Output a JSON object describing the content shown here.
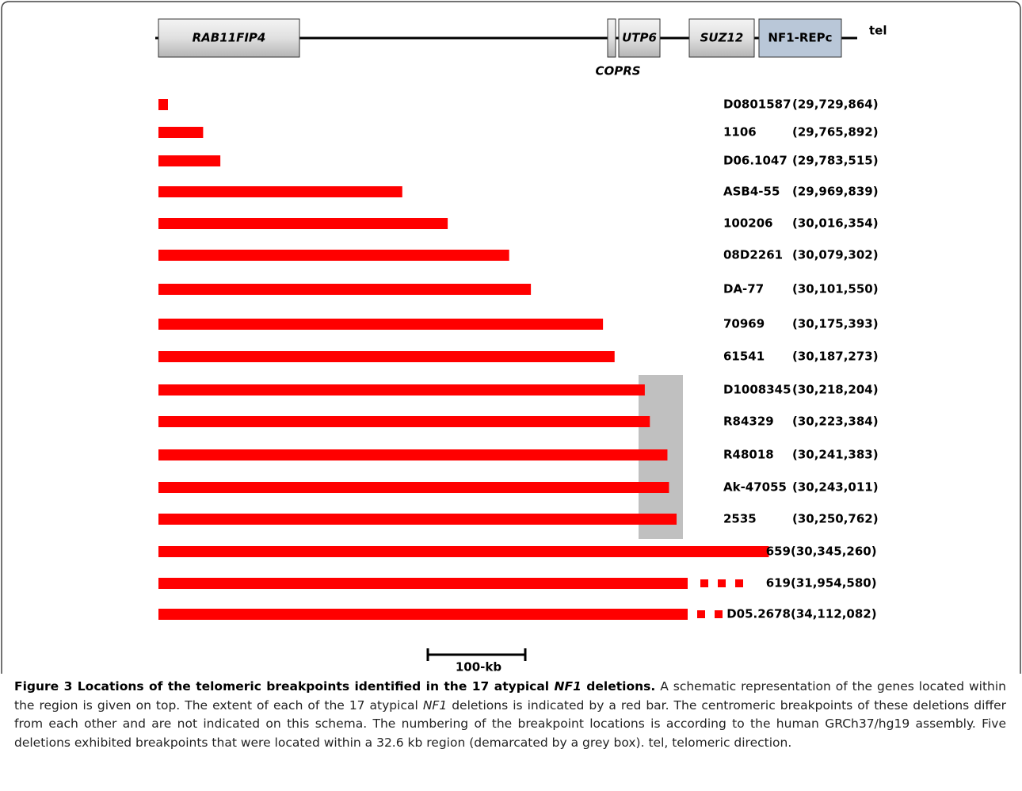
{
  "genes": [
    {
      "label": "RAB11FIP4"
    },
    {
      "label": "COPRS"
    },
    {
      "label": "UTP6"
    },
    {
      "label": "SUZ12"
    },
    {
      "label": "NF1-REPc"
    }
  ],
  "tel_label": "tel",
  "rows": [
    {
      "id": "D0801587",
      "position": 29729864,
      "label": "(29,729,864)"
    },
    {
      "id": "1106",
      "position": 29765892,
      "label": "(29,765,892)"
    },
    {
      "id": "D06.1047",
      "position": 29783515,
      "label": "(29,783,515)"
    },
    {
      "id": "ASB4-55",
      "position": 29969839,
      "label": "(29,969,839)"
    },
    {
      "id": "100206",
      "position": 30016354,
      "label": "(30,016,354)"
    },
    {
      "id": "08D2261",
      "position": 30079302,
      "label": "(30,079,302)"
    },
    {
      "id": "DA-77",
      "position": 30101550,
      "label": "(30,101,550)"
    },
    {
      "id": "70969",
      "position": 30175393,
      "label": "(30,175,393)"
    },
    {
      "id": "61541",
      "position": 30187273,
      "label": "(30,187,273)"
    },
    {
      "id": "D1008345",
      "position": 30218204,
      "label": "(30,218,204)"
    },
    {
      "id": "R84329",
      "position": 30223384,
      "label": "(30,223,384)"
    },
    {
      "id": "R48018",
      "position": 30241383,
      "label": "(30,241,383)"
    },
    {
      "id": "Ak-47055",
      "position": 30243011,
      "label": "(30,243,011)"
    },
    {
      "id": "2535",
      "position": 30250762,
      "label": "(30,250,762)"
    },
    {
      "id": "659",
      "position": 30345260,
      "label": "(30,345,260)"
    },
    {
      "id": "619",
      "position": 31954580,
      "label": "(31,954,580)"
    },
    {
      "id": "D05.2678",
      "position": 34112082,
      "label": "(34,112,082)"
    }
  ],
  "scale_bar": "100-kb",
  "caption": {
    "title": [
      "Figure 3 Locations of the telomeric breakpoints identified in the 17 atypical ",
      "NF1",
      " deletions."
    ],
    "body": [
      " A schematic representation of the genes located within the region is given on top. The extent of each of the 17 atypical ",
      "NF1",
      " deletions is indicated by a red bar. The centromeric breakpoints of these deletions differ from each other and are not indicated on this schema. The numbering of the breakpoint locations is according to the human GRCh37/hg19 assembly. Five deletions exhibited breakpoints that were located within a 32.6 kb region (demarcated by a grey box). tel, telomeric direction."
    ]
  }
}
